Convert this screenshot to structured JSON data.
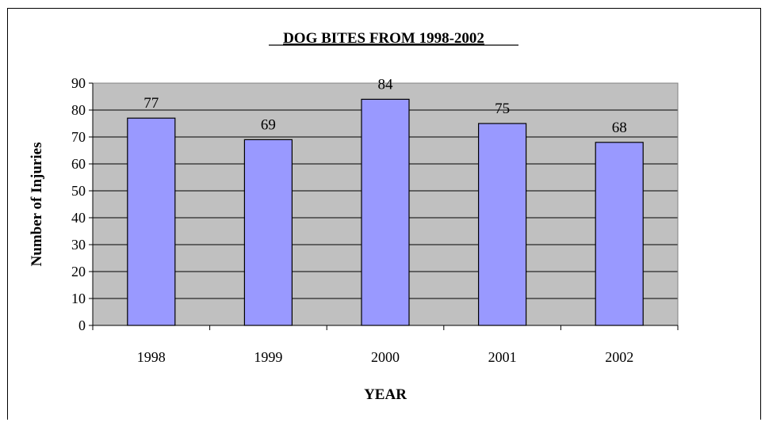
{
  "chart_data": {
    "type": "bar",
    "title": "DOG BITES FROM 1998-2002",
    "xlabel": "YEAR",
    "ylabel": "Number of Injuries",
    "categories": [
      "1998",
      "1999",
      "2000",
      "2001",
      "2002"
    ],
    "values": [
      77,
      69,
      84,
      75,
      68
    ],
    "data_labels": [
      "77",
      "69",
      "84",
      "75",
      "68"
    ],
    "ylim": [
      0,
      90
    ],
    "yticks": [
      "0",
      "10",
      "20",
      "30",
      "40",
      "50",
      "60",
      "70",
      "80",
      "90"
    ],
    "grid": true,
    "legend": "none",
    "colors": {
      "bar": "#9999ff",
      "plot_background": "#c0c0c0",
      "bar_outline": "#000000"
    }
  }
}
